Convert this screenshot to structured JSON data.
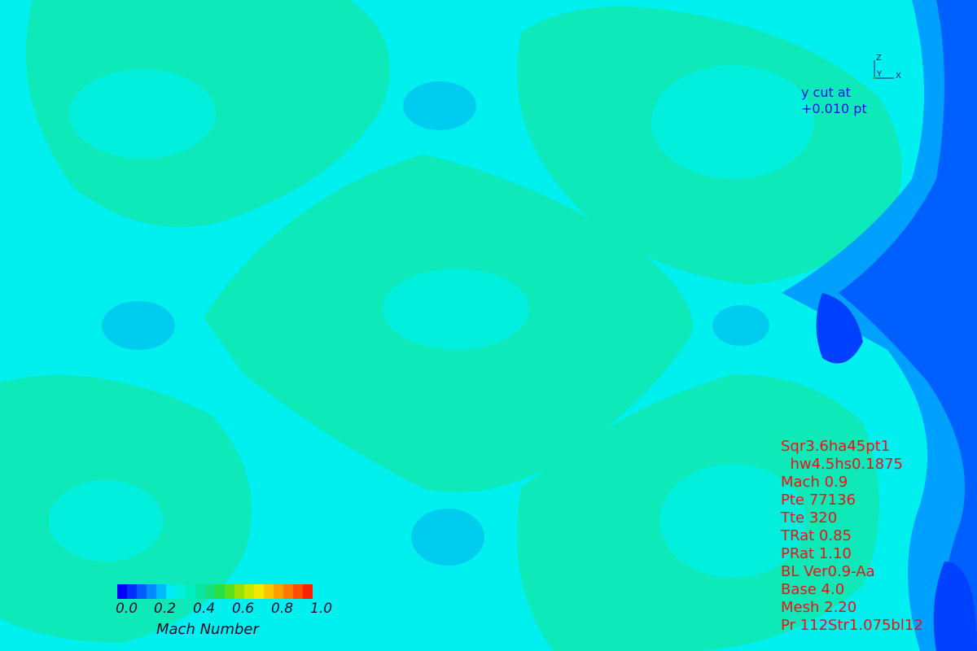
{
  "plot": {
    "cut_label_line1": "y cut at",
    "cut_label_line2": "+0.010 pt",
    "axes": {
      "z": "Z",
      "y": "Y",
      "x": "X"
    }
  },
  "colorbar": {
    "title": "Mach Number",
    "ticks": [
      "0.0",
      "0.2",
      "0.4",
      "0.6",
      "0.8",
      "1.0"
    ],
    "range": [
      0.0,
      1.0
    ],
    "colormap": [
      "#0000ff",
      "#0050ff",
      "#00a0ff",
      "#00f0f0",
      "#00f0c0",
      "#10e090",
      "#30e030",
      "#a0e000",
      "#f0f000",
      "#ffb000",
      "#ff7000",
      "#ff2000"
    ]
  },
  "params": [
    "Sqr3.6ha45pt1",
    "  hw4.5hs0.1875",
    "Mach 0.9",
    "Pte 77136",
    "Tte 320",
    "TRat 0.85",
    "PRat 1.10",
    "BL Ver0.9-Aa",
    "Base 4.0",
    "Mesh 2.20",
    "Pr 112Str1.075bl12"
  ],
  "colors": {
    "background_field": "#00f0f0",
    "high_region": "#10e8b0",
    "low_region": "#0040ff",
    "param_text": "#f01010",
    "cut_text": "#1010e8"
  }
}
